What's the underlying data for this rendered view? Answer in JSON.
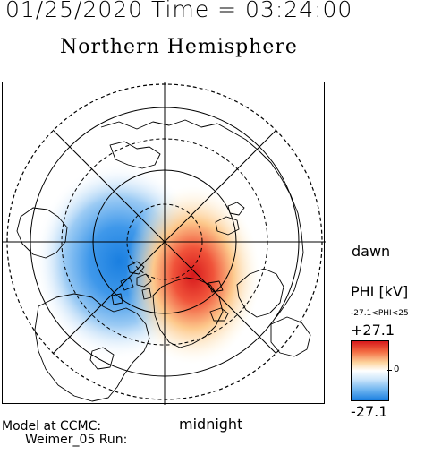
{
  "header": {
    "date_time": "01/25/2020 Time = 03:24:00",
    "hemisphere": "Northern Hemisphere"
  },
  "labels": {
    "dawn": "dawn",
    "midnight": "midnight"
  },
  "legend": {
    "title": "PHI [kV]",
    "range_text": "-27.1<PHI<25",
    "max_label": "+27.1",
    "zero_label": "0",
    "min_label": "-27.1",
    "colors": {
      "positive": "#d7191c",
      "neutral": "#ffffff",
      "negative": "#1a7fe0"
    }
  },
  "footer": {
    "line1": "Model at CCMC:",
    "line2": "Weimer_05 Run:"
  }
}
